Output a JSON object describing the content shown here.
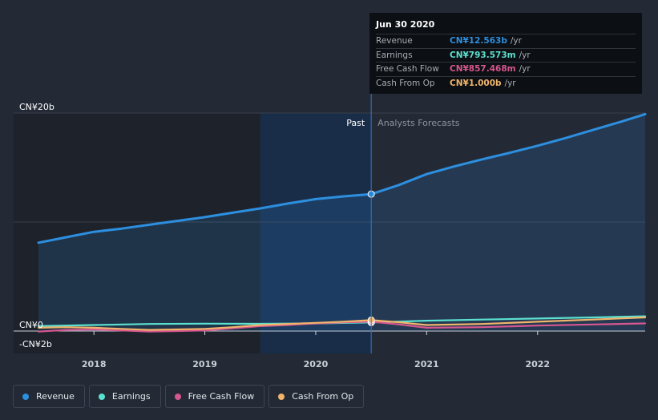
{
  "tooltip": {
    "date": "Jun 30 2020",
    "rows": [
      {
        "name": "Revenue",
        "value": "CN¥12.563b",
        "unit": "/yr",
        "color": "#2d8fe0"
      },
      {
        "name": "Earnings",
        "value": "CN¥793.573m",
        "unit": "/yr",
        "color": "#5ce0cf"
      },
      {
        "name": "Free Cash Flow",
        "value": "CN¥857.468m",
        "unit": "/yr",
        "color": "#d7578f"
      },
      {
        "name": "Cash From Op",
        "value": "CN¥1.000b",
        "unit": "/yr",
        "color": "#f1b46b"
      }
    ]
  },
  "legend": [
    {
      "label": "Revenue",
      "color": "#2d8fe0"
    },
    {
      "label": "Earnings",
      "color": "#5ce0cf"
    },
    {
      "label": "Free Cash Flow",
      "color": "#d7578f"
    },
    {
      "label": "Cash From Op",
      "color": "#f1b46b"
    }
  ],
  "chart_data": {
    "type": "line",
    "y_unit": "CN¥ billion",
    "ylim": [
      -2,
      20
    ],
    "y_tick_labels": [
      {
        "value": 20,
        "label": "CN¥20b"
      },
      {
        "value": 0,
        "label": "CN¥0"
      },
      {
        "value": -2,
        "label": "-CN¥2b"
      }
    ],
    "xlim": [
      2017.5,
      2022.97
    ],
    "x_ticks": [
      2018,
      2019,
      2020,
      2021,
      2022
    ],
    "x_tick_labels": [
      "2018",
      "2019",
      "2020",
      "2021",
      "2022"
    ],
    "past_label": "Past",
    "forecast_label": "Analysts Forecasts",
    "past_end": 2020.5,
    "highlight_start": 2019.5,
    "series": [
      {
        "name": "Revenue",
        "color": "#2d8fe0",
        "fill": true,
        "x": [
          2017.5,
          2017.75,
          2018,
          2018.25,
          2018.5,
          2018.75,
          2019,
          2019.25,
          2019.5,
          2019.75,
          2020,
          2020.25,
          2020.5,
          2020.75,
          2021,
          2021.25,
          2021.5,
          2021.75,
          2022,
          2022.25,
          2022.5,
          2022.75,
          2022.97
        ],
        "y": [
          8.1,
          8.6,
          9.1,
          9.4,
          9.75,
          10.1,
          10.45,
          10.85,
          11.25,
          11.7,
          12.1,
          12.35,
          12.56,
          13.4,
          14.4,
          15.1,
          15.75,
          16.35,
          17.0,
          17.7,
          18.45,
          19.2,
          19.9
        ]
      },
      {
        "name": "Earnings",
        "color": "#5ce0cf",
        "x": [
          2017.5,
          2018,
          2018.5,
          2019,
          2019.5,
          2020,
          2020.5,
          2021,
          2021.5,
          2022,
          2022.5,
          2022.97
        ],
        "y": [
          0.45,
          0.55,
          0.65,
          0.68,
          0.66,
          0.7,
          0.79,
          0.95,
          1.05,
          1.15,
          1.25,
          1.35
        ]
      },
      {
        "name": "Free Cash Flow",
        "color": "#d7578f",
        "x": [
          2017.5,
          2017.75,
          2018,
          2018.25,
          2018.5,
          2018.75,
          2019,
          2019.25,
          2019.5,
          2019.75,
          2020,
          2020.25,
          2020.5,
          2020.75,
          2021,
          2021.5,
          2022,
          2022.5,
          2022.97
        ],
        "y": [
          -0.05,
          0.1,
          0.15,
          0.05,
          -0.05,
          0.0,
          0.05,
          0.25,
          0.45,
          0.55,
          0.7,
          0.8,
          0.86,
          0.6,
          0.3,
          0.35,
          0.5,
          0.6,
          0.7
        ]
      },
      {
        "name": "Cash From Op",
        "color": "#f1b46b",
        "x": [
          2017.5,
          2017.75,
          2018,
          2018.25,
          2018.5,
          2018.75,
          2019,
          2019.25,
          2019.5,
          2019.75,
          2020,
          2020.25,
          2020.5,
          2020.75,
          2021,
          2021.5,
          2022,
          2022.5,
          2022.97
        ],
        "y": [
          0.3,
          0.35,
          0.3,
          0.2,
          0.1,
          0.15,
          0.2,
          0.35,
          0.55,
          0.65,
          0.75,
          0.85,
          1.0,
          0.8,
          0.55,
          0.65,
          0.85,
          1.05,
          1.25
        ]
      }
    ]
  }
}
